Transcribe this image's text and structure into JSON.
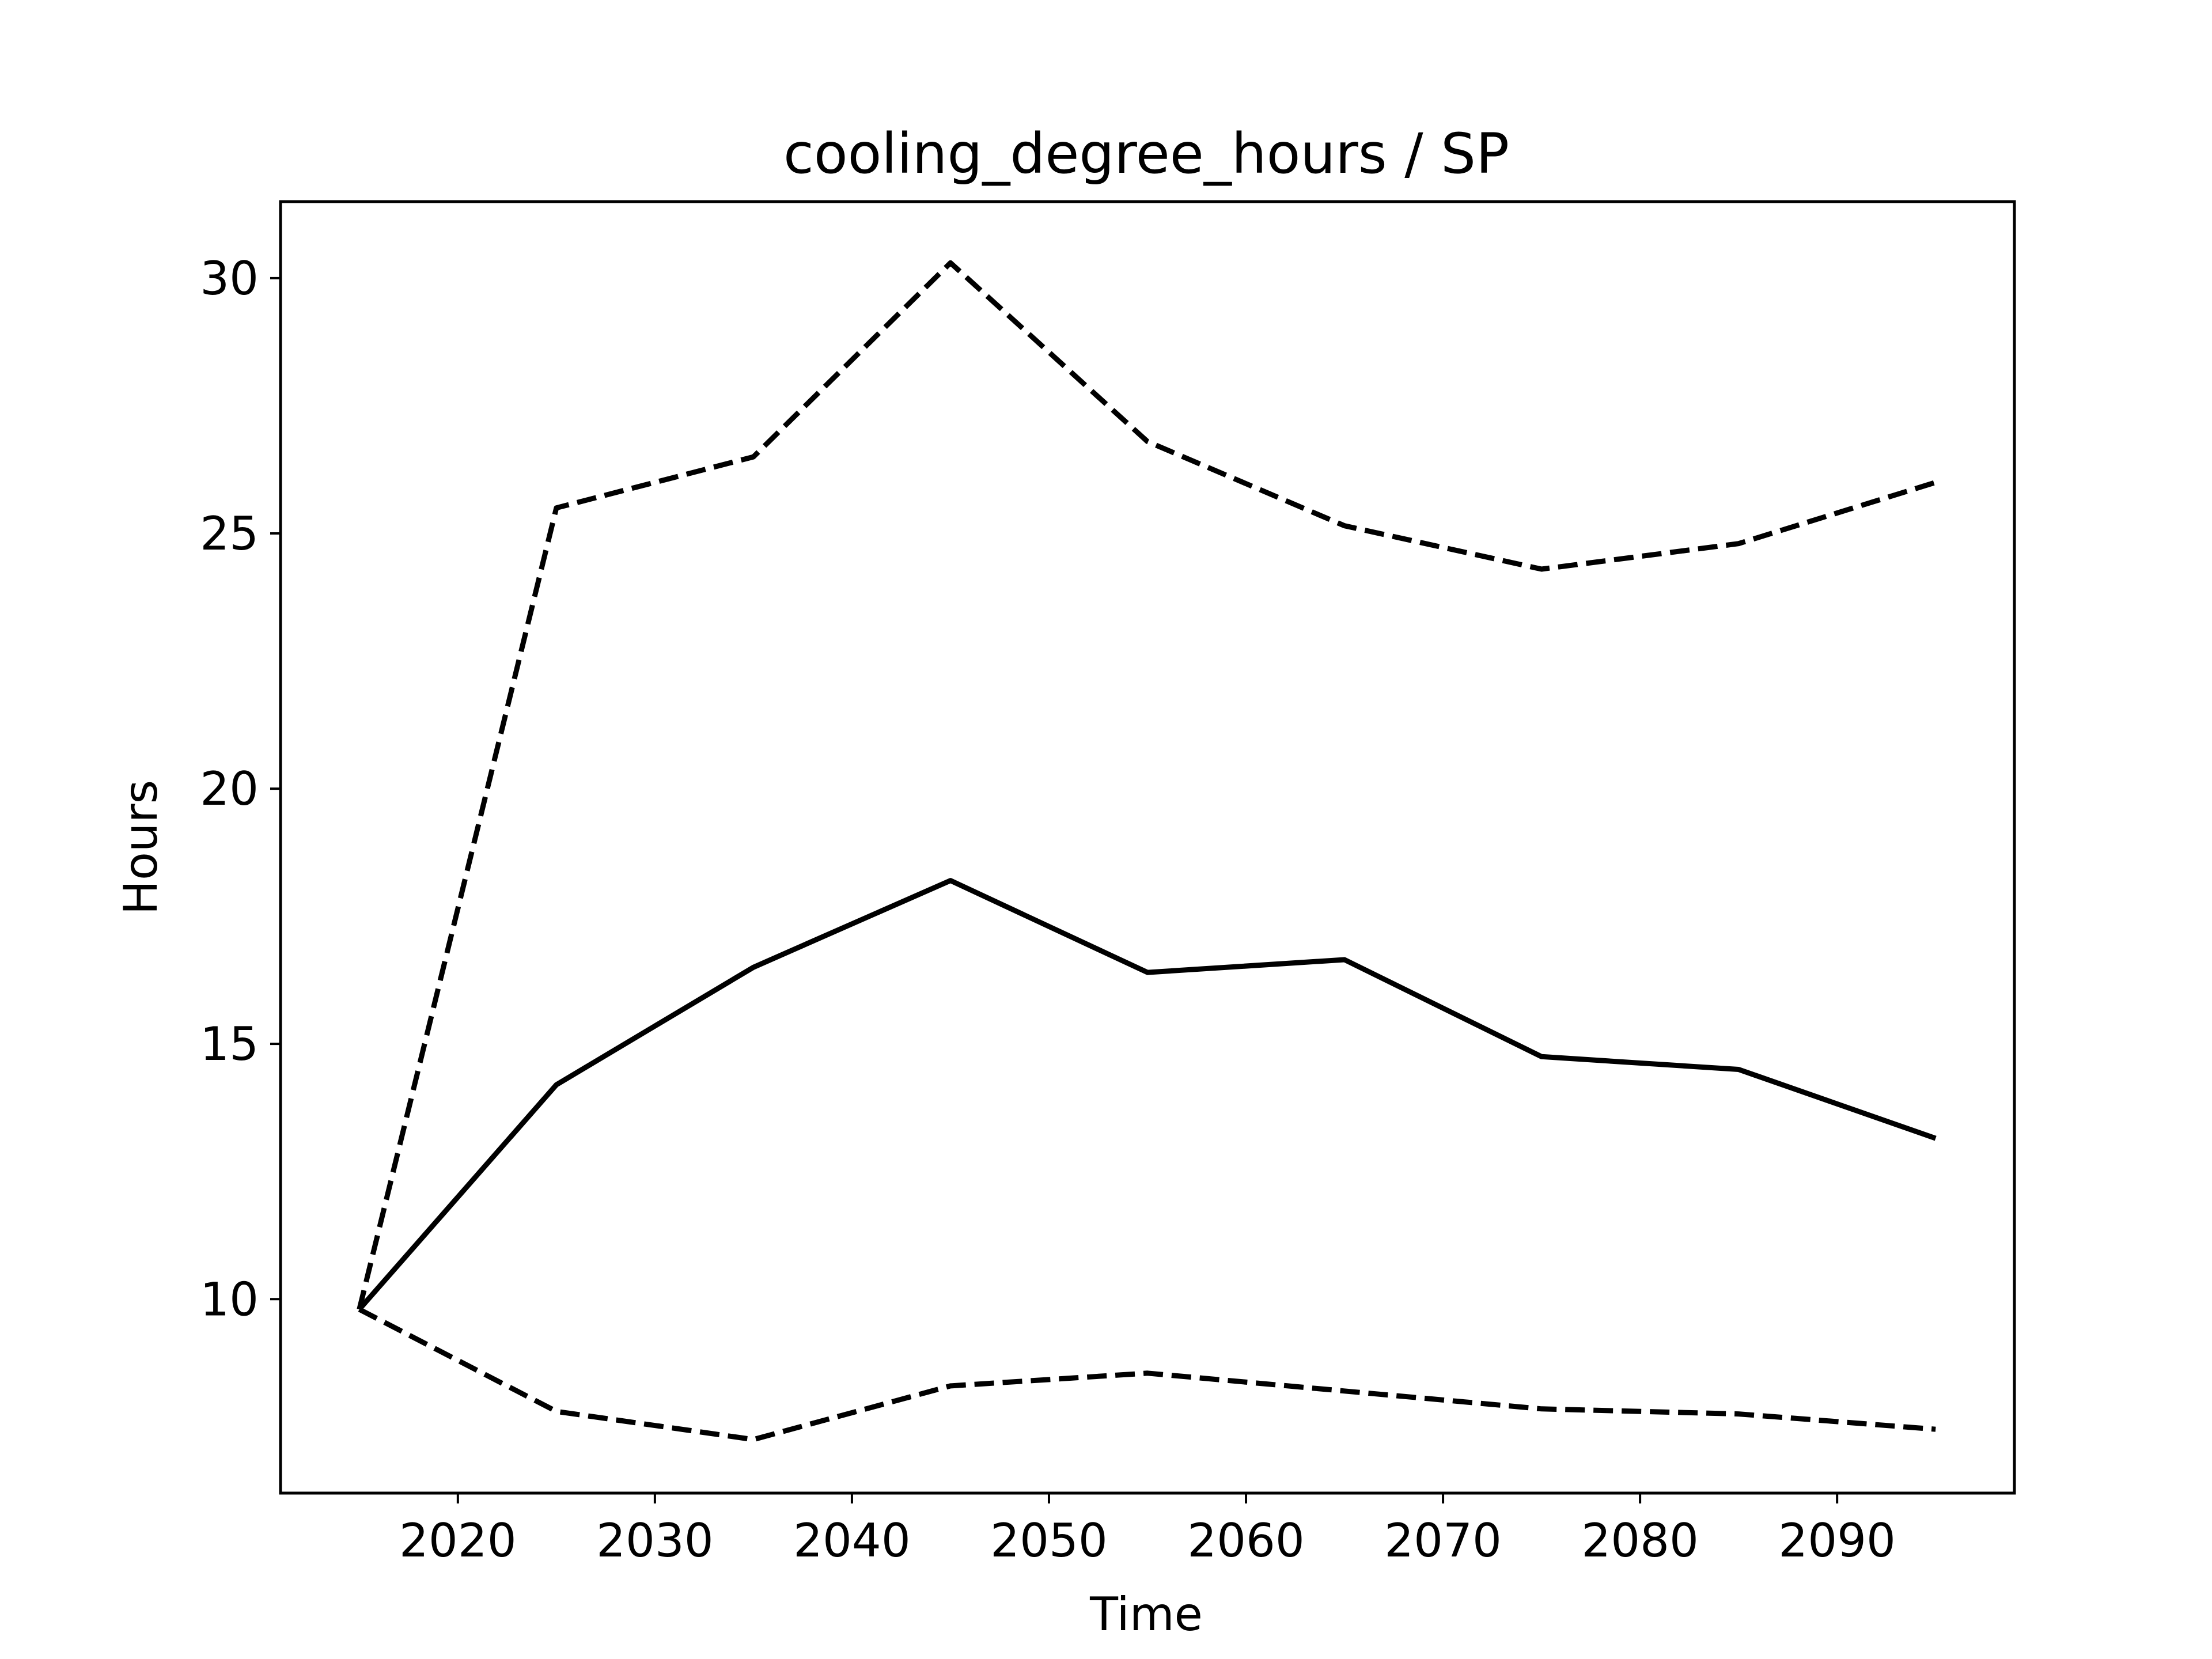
{
  "chart_data": {
    "type": "line",
    "title": "cooling_degree_hours / SP",
    "xlabel": "Time",
    "ylabel": "Hours",
    "xlim": [
      2011,
      2099
    ],
    "ylim": [
      6.2,
      31.5
    ],
    "xticks": [
      2020,
      2030,
      2040,
      2050,
      2060,
      2070,
      2080,
      2090
    ],
    "yticks": [
      10,
      15,
      20,
      25,
      30
    ],
    "grid": false,
    "legend": "none",
    "x": [
      2015,
      2025,
      2035,
      2045,
      2055,
      2065,
      2075,
      2085,
      2095
    ],
    "series": [
      {
        "style": "solid",
        "color": "#000000",
        "values": [
          9.8,
          14.2,
          16.5,
          18.2,
          16.4,
          16.65,
          14.75,
          14.5,
          13.15
        ]
      },
      {
        "style": "dashed",
        "color": "#000000",
        "values": [
          9.8,
          25.5,
          26.5,
          30.3,
          26.8,
          25.15,
          24.3,
          24.8,
          26.0
        ]
      },
      {
        "style": "dashed",
        "color": "#000000",
        "values": [
          9.8,
          7.8,
          7.25,
          8.3,
          8.55,
          8.2,
          7.85,
          7.75,
          7.45
        ]
      }
    ]
  }
}
